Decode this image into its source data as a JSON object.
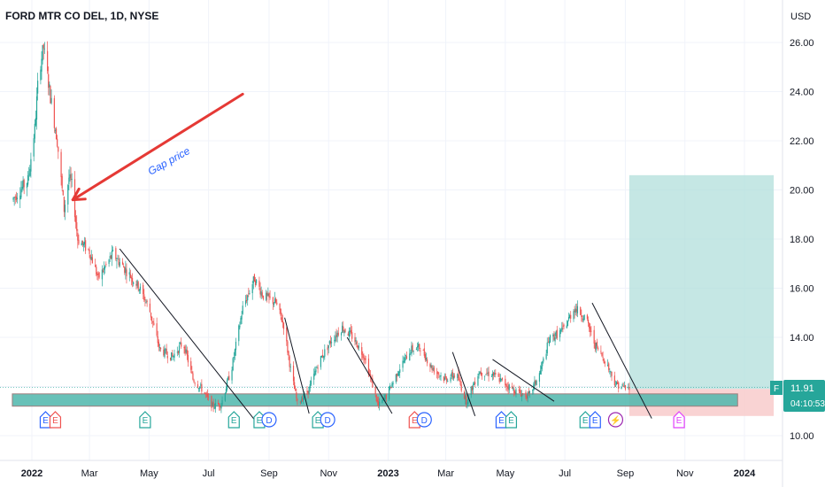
{
  "header": {
    "title": "FORD MTR CO DEL, 1D, NYSE",
    "currency": "USD"
  },
  "price_badge": {
    "symbol": "F",
    "price": "11.91",
    "countdown": "04:10:53"
  },
  "colors": {
    "up": "#26a69a",
    "down": "#ef5350",
    "target_zone": "#b2dfdb",
    "stop_zone": "#f8c8c8",
    "support_band": "#4db6ac",
    "arrow": "#e53935",
    "annotation": "#2962ff"
  },
  "annotation": {
    "text": "Gap price"
  },
  "chart_data": {
    "type": "candlestick",
    "title": "FORD MTR CO DEL, 1D, NYSE",
    "ylim": [
      9.2,
      26.6
    ],
    "xlim": [
      "2021-12-12",
      "2024-02-15"
    ],
    "yticks": [
      "26.00",
      "24.00",
      "22.00",
      "20.00",
      "18.00",
      "16.00",
      "14.00",
      "12.00",
      "10.00"
    ],
    "xticks": [
      {
        "label": "2022",
        "date": "2022-01-01",
        "bold": true
      },
      {
        "label": "Mar",
        "date": "2022-03-01"
      },
      {
        "label": "May",
        "date": "2022-05-01"
      },
      {
        "label": "Jul",
        "date": "2022-07-01"
      },
      {
        "label": "Sep",
        "date": "2022-09-01"
      },
      {
        "label": "Nov",
        "date": "2022-11-01"
      },
      {
        "label": "2023",
        "date": "2023-01-01",
        "bold": true
      },
      {
        "label": "Mar",
        "date": "2023-03-01"
      },
      {
        "label": "May",
        "date": "2023-05-01"
      },
      {
        "label": "Jul",
        "date": "2023-07-01"
      },
      {
        "label": "Sep",
        "date": "2023-09-01"
      },
      {
        "label": "Nov",
        "date": "2023-11-01"
      },
      {
        "label": "2024",
        "date": "2024-01-01",
        "bold": true
      }
    ],
    "price_path": [
      [
        "2021-12-12",
        19.6
      ],
      [
        "2021-12-28",
        20.4
      ],
      [
        "2022-01-04",
        22.5
      ],
      [
        "2022-01-08",
        24.8
      ],
      [
        "2022-01-13",
        25.8
      ],
      [
        "2022-01-20",
        23.8
      ],
      [
        "2022-01-27",
        22.0
      ],
      [
        "2022-02-03",
        19.2
      ],
      [
        "2022-02-08",
        20.5
      ],
      [
        "2022-02-11",
        20.2
      ],
      [
        "2022-02-17",
        18.0
      ],
      [
        "2022-03-01",
        17.5
      ],
      [
        "2022-03-10",
        16.4
      ],
      [
        "2022-03-25",
        17.4
      ],
      [
        "2022-04-08",
        16.7
      ],
      [
        "2022-04-20",
        16.1
      ],
      [
        "2022-05-01",
        15.2
      ],
      [
        "2022-05-12",
        13.5
      ],
      [
        "2022-05-25",
        13.2
      ],
      [
        "2022-06-05",
        13.8
      ],
      [
        "2022-06-15",
        12.3
      ],
      [
        "2022-06-24",
        11.9
      ],
      [
        "2022-07-05",
        11.2
      ],
      [
        "2022-07-14",
        11.3
      ],
      [
        "2022-07-25",
        12.8
      ],
      [
        "2022-08-05",
        15.2
      ],
      [
        "2022-08-17",
        16.4
      ],
      [
        "2022-08-26",
        15.7
      ],
      [
        "2022-09-08",
        15.4
      ],
      [
        "2022-09-16",
        14.5
      ],
      [
        "2022-09-23",
        12.7
      ],
      [
        "2022-09-30",
        11.3
      ],
      [
        "2022-10-12",
        11.9
      ],
      [
        "2022-10-22",
        13.0
      ],
      [
        "2022-11-04",
        13.9
      ],
      [
        "2022-11-15",
        14.4
      ],
      [
        "2022-11-26",
        14.0
      ],
      [
        "2022-12-08",
        13.2
      ],
      [
        "2022-12-22",
        11.2
      ],
      [
        "2022-12-30",
        11.6
      ],
      [
        "2023-01-12",
        12.7
      ],
      [
        "2023-01-24",
        13.5
      ],
      [
        "2023-02-03",
        13.6
      ],
      [
        "2023-02-14",
        12.8
      ],
      [
        "2023-02-28",
        12.3
      ],
      [
        "2023-03-12",
        12.5
      ],
      [
        "2023-03-22",
        11.4
      ],
      [
        "2023-04-04",
        12.6
      ],
      [
        "2023-04-18",
        12.5
      ],
      [
        "2023-05-01",
        12.1
      ],
      [
        "2023-05-12",
        11.8
      ],
      [
        "2023-05-25",
        11.6
      ],
      [
        "2023-06-05",
        12.5
      ],
      [
        "2023-06-15",
        13.9
      ],
      [
        "2023-06-29",
        14.3
      ],
      [
        "2023-07-11",
        15.2
      ],
      [
        "2023-07-22",
        14.8
      ],
      [
        "2023-08-01",
        13.7
      ],
      [
        "2023-08-12",
        13.0
      ],
      [
        "2023-08-22",
        12.1
      ],
      [
        "2023-09-05",
        11.9
      ]
    ],
    "trend_lines": [
      [
        [
          "2022-04-01",
          17.6
        ],
        [
          "2022-08-18",
          10.6
        ]
      ],
      [
        [
          "2022-09-17",
          14.8
        ],
        [
          "2022-10-12",
          10.9
        ]
      ],
      [
        [
          "2022-11-20",
          14.0
        ],
        [
          "2023-01-05",
          10.9
        ]
      ],
      [
        [
          "2023-03-08",
          13.4
        ],
        [
          "2023-03-31",
          10.8
        ]
      ],
      [
        [
          "2023-04-18",
          13.1
        ],
        [
          "2023-06-20",
          11.4
        ]
      ],
      [
        [
          "2023-07-29",
          15.4
        ],
        [
          "2023-09-28",
          10.7
        ]
      ]
    ],
    "support_zone": {
      "from": "2021-12-12",
      "to": "2023-12-25",
      "low": 11.2,
      "high": 11.7
    },
    "position": {
      "from": "2023-09-05",
      "to": "2024-01-31",
      "entry": 11.9,
      "target": 20.6,
      "stop": 10.8
    },
    "gap_arrow": {
      "from": [
        "2022-08-05",
        23.9
      ],
      "to": [
        "2022-02-12",
        19.6
      ]
    },
    "events": [
      {
        "date": "2022-01-20",
        "types": [
          "E",
          "E"
        ],
        "colors": [
          "#2962ff",
          "#ef5350"
        ]
      },
      {
        "date": "2022-04-27",
        "types": [
          "E"
        ],
        "colors": [
          "#26a69a"
        ]
      },
      {
        "date": "2022-07-27",
        "types": [
          "E"
        ],
        "colors": [
          "#26a69a"
        ]
      },
      {
        "date": "2022-08-27",
        "types": [
          "E",
          "D"
        ],
        "colors": [
          "#26a69a",
          "#2962ff"
        ]
      },
      {
        "date": "2022-10-26",
        "types": [
          "E",
          "D"
        ],
        "colors": [
          "#26a69a",
          "#2962ff"
        ]
      },
      {
        "date": "2023-02-02",
        "types": [
          "E",
          "D"
        ],
        "colors": [
          "#ef5350",
          "#2962ff"
        ]
      },
      {
        "date": "2023-05-02",
        "types": [
          "E",
          "E"
        ],
        "colors": [
          "#2962ff",
          "#26a69a"
        ]
      },
      {
        "date": "2023-07-27",
        "types": [
          "E",
          "E"
        ],
        "colors": [
          "#26a69a",
          "#2962ff"
        ]
      },
      {
        "date": "2023-08-22",
        "types": [
          "⚡"
        ],
        "colors": [
          "#9c27b0"
        ]
      },
      {
        "date": "2023-10-26",
        "types": [
          "E"
        ],
        "colors": [
          "#e040fb"
        ]
      }
    ]
  }
}
